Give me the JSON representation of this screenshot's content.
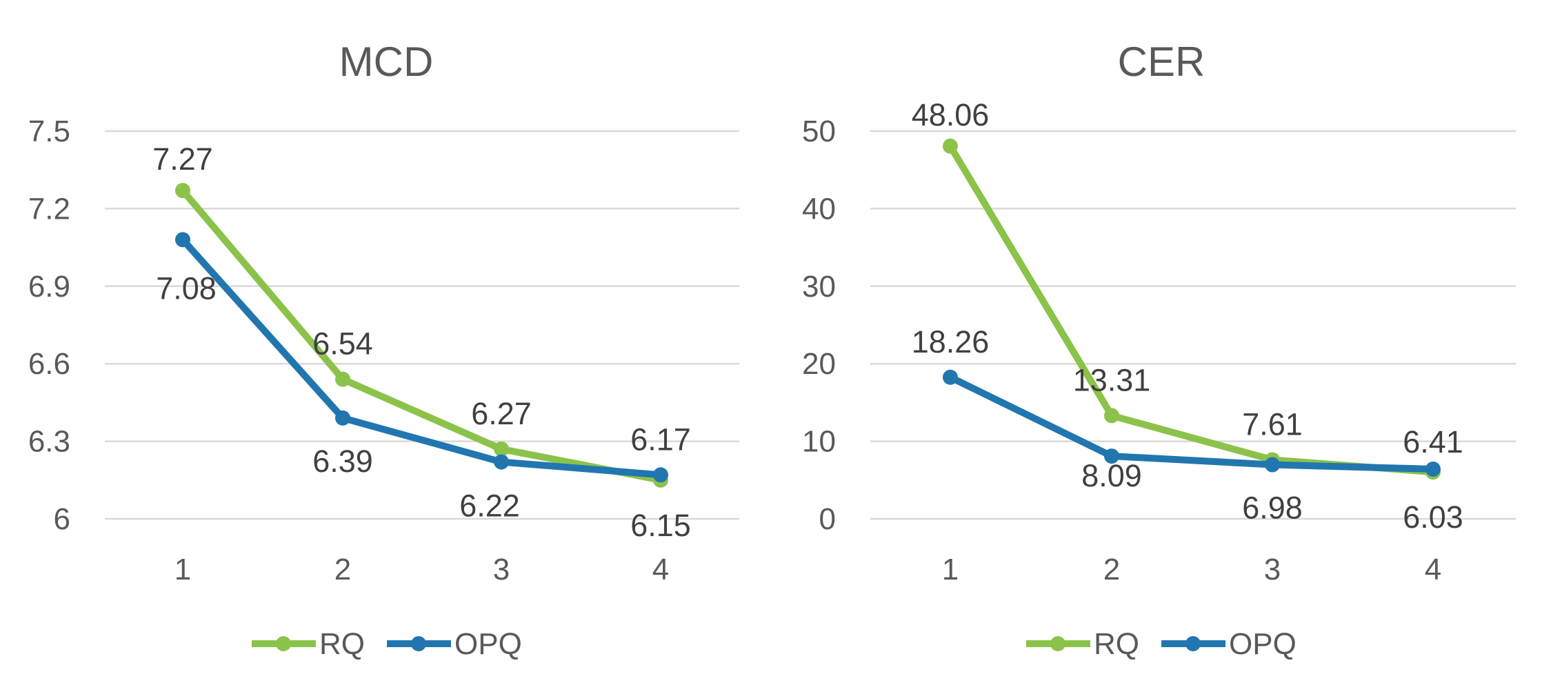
{
  "chart_data": [
    {
      "type": "line",
      "title": "MCD",
      "xlabel": "",
      "ylabel": "",
      "categories": [
        "1",
        "2",
        "3",
        "4"
      ],
      "yticks": [
        "6",
        "6.3",
        "6.6",
        "6.9",
        "7.2",
        "7.5"
      ],
      "ylim": [
        6,
        7.5
      ],
      "grid": true,
      "legend_position": "bottom",
      "series": [
        {
          "name": "RQ",
          "color": "#8bc34a",
          "values": [
            7.27,
            6.54,
            6.27,
            6.15
          ],
          "labels": [
            "7.27",
            "6.54",
            "6.27",
            "6.15"
          ]
        },
        {
          "name": "OPQ",
          "color": "#2176b0",
          "values": [
            7.08,
            6.39,
            6.22,
            6.17
          ],
          "labels": [
            "7.08",
            "6.39",
            "6.22",
            "6.17"
          ]
        }
      ]
    },
    {
      "type": "line",
      "title": "CER",
      "xlabel": "",
      "ylabel": "",
      "categories": [
        "1",
        "2",
        "3",
        "4"
      ],
      "yticks": [
        "0",
        "10",
        "20",
        "30",
        "40",
        "50"
      ],
      "ylim": [
        0,
        50
      ],
      "grid": true,
      "legend_position": "bottom",
      "series": [
        {
          "name": "RQ",
          "color": "#8bc34a",
          "values": [
            48.06,
            13.31,
            7.61,
            6.03
          ],
          "labels": [
            "48.06",
            "13.31",
            "7.61",
            "6.03"
          ]
        },
        {
          "name": "OPQ",
          "color": "#2176b0",
          "values": [
            18.26,
            8.09,
            6.98,
            6.41
          ],
          "labels": [
            "18.26",
            "8.09",
            "6.98",
            "6.41"
          ]
        }
      ]
    }
  ]
}
